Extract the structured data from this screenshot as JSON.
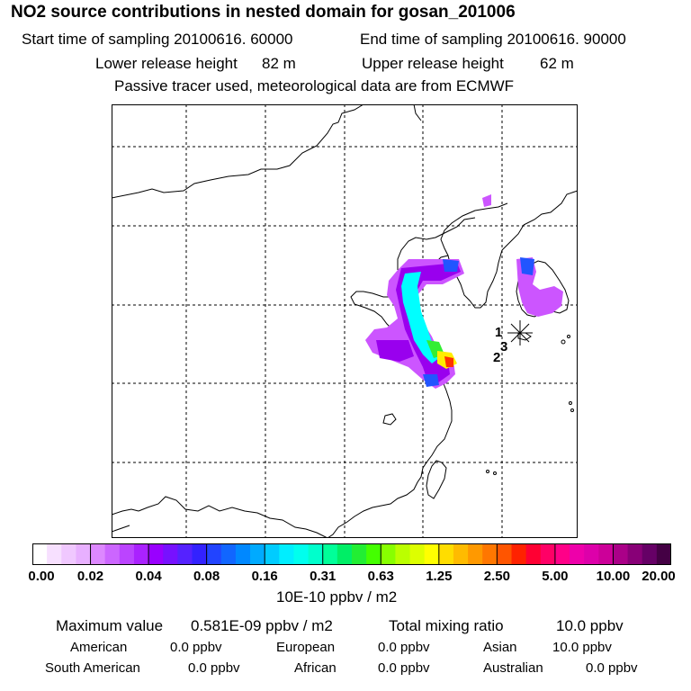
{
  "header": {
    "title": "NO2 source contributions in nested domain for gosan_201006",
    "start_label": "Start time of sampling 20100616. 60000",
    "end_label": "End time of sampling 20100616. 90000",
    "lower_label": "Lower release height",
    "lower_value": "82 m",
    "upper_label": "Upper release height",
    "upper_value": "62 m",
    "note": "Passive tracer used, meteorological data are from ECMWF"
  },
  "map": {
    "receptor_labels": [
      "1",
      "3",
      "2"
    ],
    "plume_colors": {
      "outer": "#cc55ff",
      "mid": "#9900ee",
      "inner": "#00ffff",
      "blue": "#2255ff",
      "green": "#33ee33",
      "yellow": "#ffee00",
      "red": "#ff3300"
    }
  },
  "colorbar": {
    "ticks": [
      "0.00",
      "0.02",
      "0.04",
      "0.08",
      "0.16",
      "0.31",
      "0.63",
      "1.25",
      "2.50",
      "5.00",
      "10.00",
      "20.00"
    ],
    "segment_colors": [
      "#ffffff",
      "#f7e0ff",
      "#f0c8ff",
      "#e8b0ff",
      "#dd88ff",
      "#cc66ff",
      "#bb44ff",
      "#aa22ff",
      "#9900ff",
      "#7711ff",
      "#5522ff",
      "#3322ff",
      "#2244ff",
      "#1166ff",
      "#0088ff",
      "#00aaff",
      "#00ccff",
      "#00eeff",
      "#00ffee",
      "#00ffcc",
      "#00ff99",
      "#00ee66",
      "#22ee33",
      "#44ff00",
      "#88ff00",
      "#bbff00",
      "#ddff00",
      "#ffff00",
      "#ffdd00",
      "#ffbb00",
      "#ff9900",
      "#ff7700",
      "#ff5500",
      "#ff2200",
      "#ff0033",
      "#ff0066",
      "#ff0088",
      "#ee00aa",
      "#dd00aa",
      "#cc0099",
      "#aa0088",
      "#880077",
      "#660066",
      "#440044"
    ],
    "unit": "10E-10 ppbv / m2"
  },
  "footer": {
    "max_label": "Maximum value",
    "max_value": "0.581E-09 ppbv / m2",
    "total_label": "Total mixing ratio",
    "total_value": "10.0 ppbv",
    "regions": [
      {
        "name": "American",
        "value": "0.0 ppbv"
      },
      {
        "name": "European",
        "value": "0.0 ppbv"
      },
      {
        "name": "Asian",
        "value": "10.0 ppbv"
      },
      {
        "name": "South American",
        "value": "0.0 ppbv"
      },
      {
        "name": "African",
        "value": "0.0 ppbv"
      },
      {
        "name": "Australian",
        "value": "0.0 ppbv"
      }
    ]
  }
}
